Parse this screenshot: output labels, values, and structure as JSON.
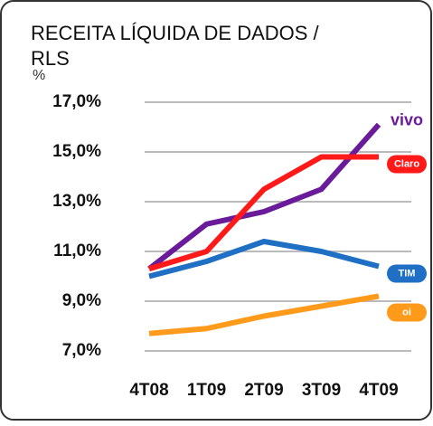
{
  "chart_data": {
    "type": "line",
    "title": "RECEITA LÍQUIDA DE DADOS / RLS",
    "y_label": "%",
    "categories": [
      "4T08",
      "1T09",
      "2T09",
      "3T09",
      "4T09"
    ],
    "series": [
      {
        "name": "vivo",
        "color": "#6a1b9a",
        "values": [
          10.3,
          12.1,
          12.6,
          13.5,
          16.1
        ]
      },
      {
        "name": "Claro",
        "color": "#ff1a1a",
        "values": [
          10.3,
          11.0,
          13.5,
          14.8,
          14.8
        ]
      },
      {
        "name": "TIM",
        "color": "#1f6fc5",
        "values": [
          10.0,
          10.6,
          11.4,
          11.0,
          10.4
        ]
      },
      {
        "name": "oi",
        "color": "#ff9a1a",
        "values": [
          7.7,
          7.9,
          8.4,
          8.8,
          9.2
        ]
      }
    ],
    "ylim": [
      7,
      17.3
    ],
    "yticks": [
      {
        "value": 7,
        "label": "7,0%"
      },
      {
        "value": 9,
        "label": "9,0%"
      },
      {
        "value": 11,
        "label": "11,0%"
      },
      {
        "value": 13,
        "label": "13,0%"
      },
      {
        "value": 15,
        "label": "15,0%"
      },
      {
        "value": 17,
        "label": "17,0%"
      }
    ],
    "grid": true
  }
}
